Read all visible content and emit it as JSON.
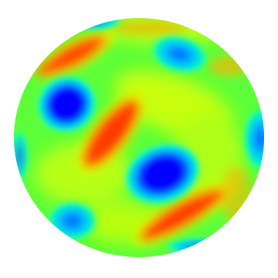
{
  "image": {
    "subject": "sphere-color-map",
    "colormap": [
      "#0000ff",
      "#00b4ff",
      "#00ffc8",
      "#64ff32",
      "#c8ff00",
      "#ffcc00",
      "#ff6a00",
      "#ff2a00"
    ],
    "background_color": "#ffffff",
    "sphere_base_color": "#64ff32"
  }
}
